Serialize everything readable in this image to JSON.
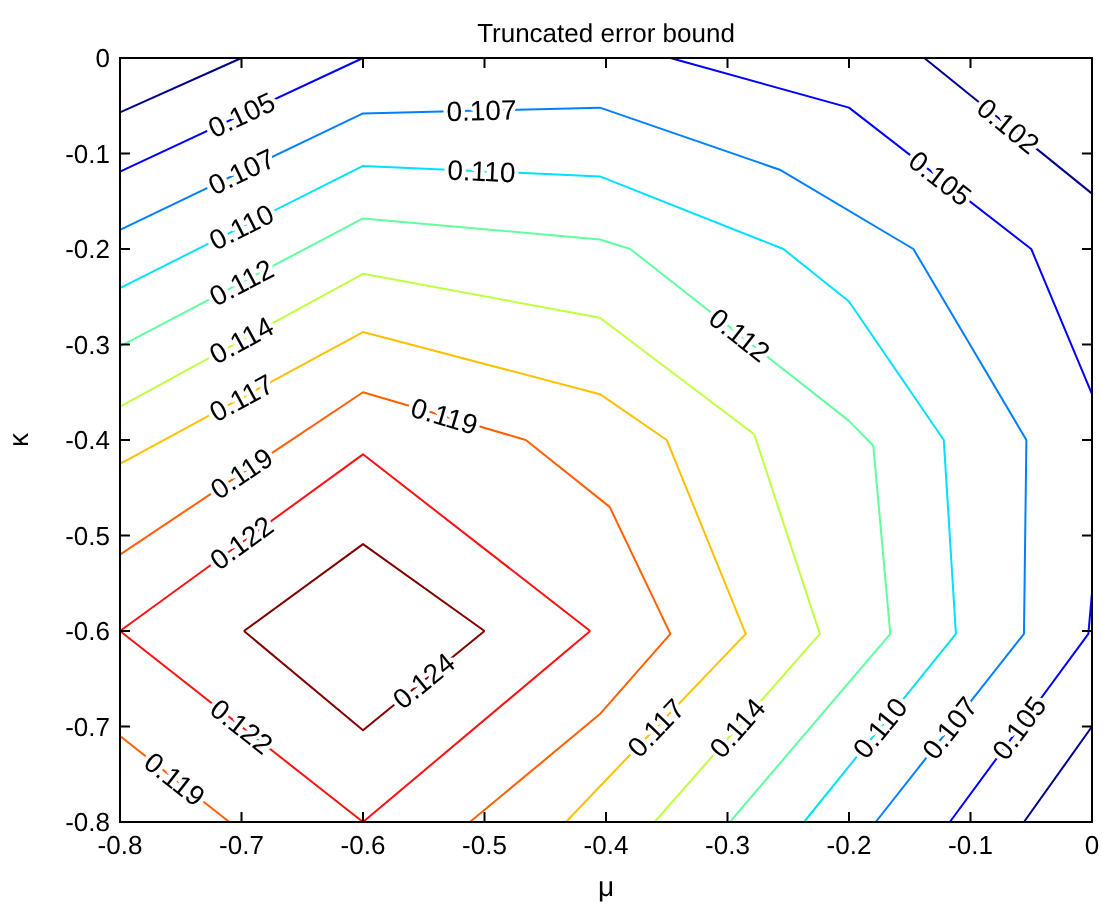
{
  "chart_data": {
    "type": "line",
    "title": "Truncated error bound",
    "xlabel": "μ",
    "ylabel": "κ",
    "xlim": [
      -0.8,
      0
    ],
    "ylim": [
      -0.8,
      0
    ],
    "xticks": [
      -0.8,
      -0.7,
      -0.6,
      -0.5,
      -0.4,
      -0.3,
      -0.2,
      -0.1,
      0
    ],
    "yticks": [
      0,
      -0.1,
      -0.2,
      -0.3,
      -0.4,
      -0.5,
      -0.6,
      -0.7,
      -0.8
    ],
    "grid": false,
    "series": [
      {
        "color": "#00008f",
        "x": [
          -0.8,
          -0.7
        ],
        "values": [
          -0.057,
          0
        ]
      },
      {
        "name": "0.102",
        "color": "#00008f",
        "x": [
          -0.138,
          0
        ],
        "values": [
          0,
          -0.142
        ]
      },
      {
        "color": "#00008f",
        "x": [
          0,
          -0.056
        ],
        "values": [
          -0.7,
          -0.8
        ]
      },
      {
        "name": "0.105",
        "color": "#0000ff",
        "x": [
          -0.8,
          -0.6
        ],
        "values": [
          -0.119,
          0
        ]
      },
      {
        "name": "0.105",
        "color": "#0000ff",
        "x": [
          -0.347,
          -0.2,
          -0.05,
          0
        ],
        "values": [
          0,
          -0.052,
          -0.2,
          -0.352
        ]
      },
      {
        "name": "0.105",
        "color": "#0000ff",
        "x": [
          0,
          -0.003,
          -0.117
        ],
        "values": [
          -0.56,
          -0.603,
          -0.8
        ]
      },
      {
        "name": "0.107",
        "color": "#0080ff",
        "x": [
          -0.8,
          -0.6,
          -0.405,
          -0.257,
          -0.147,
          -0.054,
          -0.056,
          -0.178
        ],
        "values": [
          -0.18,
          -0.058,
          -0.052,
          -0.117,
          -0.2,
          -0.4,
          -0.603,
          -0.8
        ]
      },
      {
        "name": "0.110",
        "color": "#00e0ff",
        "x": [
          -0.8,
          -0.6,
          -0.405,
          -0.254,
          -0.2,
          -0.122,
          -0.112,
          -0.237
        ],
        "values": [
          -0.241,
          -0.113,
          -0.124,
          -0.2,
          -0.255,
          -0.4,
          -0.603,
          -0.8
        ]
      },
      {
        "name": "0.112",
        "color": "#60ffa0",
        "x": [
          -0.8,
          -0.6,
          -0.405,
          -0.38,
          -0.2,
          -0.18,
          -0.166,
          -0.298
        ],
        "values": [
          -0.302,
          -0.168,
          -0.19,
          -0.2,
          -0.38,
          -0.406,
          -0.603,
          -0.8
        ]
      },
      {
        "name": "0.114",
        "color": "#c0ff40",
        "x": [
          -0.8,
          -0.6,
          -0.405,
          -0.278,
          -0.224,
          -0.36
        ],
        "values": [
          -0.365,
          -0.226,
          -0.272,
          -0.394,
          -0.603,
          -0.8
        ]
      },
      {
        "name": "0.117",
        "color": "#ffc000",
        "x": [
          -0.8,
          -0.6,
          -0.405,
          -0.35,
          -0.285,
          -0.433
        ],
        "values": [
          -0.425,
          -0.287,
          -0.352,
          -0.4,
          -0.603,
          -0.8
        ]
      },
      {
        "name": "0.119",
        "color": "#ff6000",
        "x": [
          -0.8,
          -0.6,
          -0.466,
          -0.397,
          -0.347,
          -0.405,
          -0.512
        ],
        "values": [
          -0.52,
          -0.35,
          -0.4,
          -0.47,
          -0.603,
          -0.687,
          -0.8
        ]
      },
      {
        "name": "0.119",
        "color": "#ff6000",
        "x": [
          -0.8,
          -0.71
        ],
        "values": [
          -0.71,
          -0.8
        ]
      },
      {
        "name": "0.122",
        "color": "#ff1010",
        "x": [
          -0.8,
          -0.6,
          -0.413
        ],
        "values": [
          -0.6,
          -0.415,
          -0.6
        ]
      },
      {
        "name": "0.122",
        "color": "#ff1010",
        "x": [
          -0.8,
          -0.6,
          -0.413
        ],
        "values": [
          -0.6,
          -0.8,
          -0.6
        ]
      },
      {
        "color": "#800000",
        "x": [
          -0.698,
          -0.6,
          -0.5
        ],
        "values": [
          -0.6,
          -0.509,
          -0.6
        ]
      },
      {
        "name": "0.124",
        "color": "#800000",
        "x": [
          -0.698,
          -0.6,
          -0.5
        ],
        "values": [
          -0.6,
          -0.704,
          -0.6
        ]
      }
    ]
  }
}
